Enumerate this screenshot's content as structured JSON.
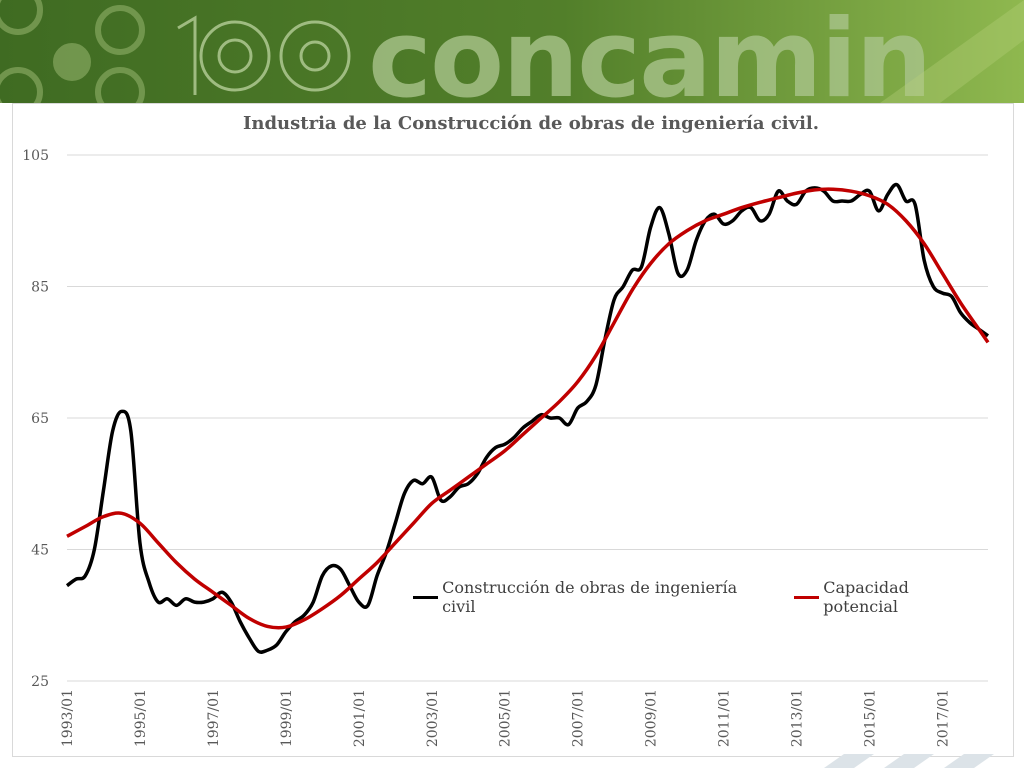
{
  "banner": {
    "logo_text": "concamin",
    "anniversary": "100",
    "colors": {
      "dark": "#3f6b22",
      "mid": "#5c8a2a",
      "light": "#8fb84f"
    }
  },
  "chart_data": {
    "type": "line",
    "title": "Industria de la Construcción de obras de ingeniería civil.",
    "xlabel": "",
    "ylabel": "",
    "ylim": [
      25,
      105
    ],
    "yticks": [
      "105",
      "85",
      "65",
      "45",
      "25"
    ],
    "xticks": [
      "1993/01",
      "1995/01",
      "1997/01",
      "1999/01",
      "2001/01",
      "2003/01",
      "2005/01",
      "2007/01",
      "2009/01",
      "2011/01",
      "2013/01",
      "2015/01",
      "2017/01"
    ],
    "grid": true,
    "legend_position": "lower-center",
    "series": [
      {
        "name": "Construcción de obras de ingeniería civil",
        "color": "#000000",
        "points": [
          [
            1993.0,
            39.5
          ],
          [
            1993.25,
            40.5
          ],
          [
            1993.5,
            41.0
          ],
          [
            1993.75,
            45.0
          ],
          [
            1994.0,
            54.0
          ],
          [
            1994.25,
            63.0
          ],
          [
            1994.5,
            66.0
          ],
          [
            1994.75,
            63.0
          ],
          [
            1995.0,
            46.0
          ],
          [
            1995.25,
            40.0
          ],
          [
            1995.5,
            37.0
          ],
          [
            1995.75,
            37.5
          ],
          [
            1996.0,
            36.5
          ],
          [
            1996.25,
            37.5
          ],
          [
            1996.5,
            37.0
          ],
          [
            1996.75,
            37.0
          ],
          [
            1997.0,
            37.5
          ],
          [
            1997.25,
            38.5
          ],
          [
            1997.5,
            37.0
          ],
          [
            1997.75,
            34.0
          ],
          [
            1998.0,
            31.5
          ],
          [
            1998.25,
            29.5
          ],
          [
            1998.5,
            29.7
          ],
          [
            1998.75,
            30.5
          ],
          [
            1999.0,
            32.5
          ],
          [
            1999.25,
            34.0
          ],
          [
            1999.5,
            35.0
          ],
          [
            1999.75,
            37.0
          ],
          [
            2000.0,
            41.0
          ],
          [
            2000.25,
            42.5
          ],
          [
            2000.5,
            42.0
          ],
          [
            2000.75,
            39.5
          ],
          [
            2001.0,
            37.0
          ],
          [
            2001.25,
            36.5
          ],
          [
            2001.5,
            41.0
          ],
          [
            2001.75,
            44.5
          ],
          [
            2002.0,
            49.0
          ],
          [
            2002.25,
            53.5
          ],
          [
            2002.5,
            55.5
          ],
          [
            2002.75,
            55.0
          ],
          [
            2003.0,
            56.0
          ],
          [
            2003.25,
            52.5
          ],
          [
            2003.5,
            53.0
          ],
          [
            2003.75,
            54.5
          ],
          [
            2004.0,
            55.0
          ],
          [
            2004.25,
            56.5
          ],
          [
            2004.5,
            59.0
          ],
          [
            2004.75,
            60.5
          ],
          [
            2005.0,
            61.0
          ],
          [
            2005.25,
            62.0
          ],
          [
            2005.5,
            63.5
          ],
          [
            2005.75,
            64.5
          ],
          [
            2006.0,
            65.5
          ],
          [
            2006.25,
            65.0
          ],
          [
            2006.5,
            65.0
          ],
          [
            2006.75,
            64.0
          ],
          [
            2007.0,
            66.5
          ],
          [
            2007.25,
            67.5
          ],
          [
            2007.5,
            70.0
          ],
          [
            2007.75,
            77.0
          ],
          [
            2008.0,
            83.0
          ],
          [
            2008.25,
            85.0
          ],
          [
            2008.5,
            87.5
          ],
          [
            2008.75,
            88.0
          ],
          [
            2009.0,
            94.0
          ],
          [
            2009.25,
            97.0
          ],
          [
            2009.5,
            93.0
          ],
          [
            2009.75,
            87.0
          ],
          [
            2010.0,
            87.5
          ],
          [
            2010.25,
            92.0
          ],
          [
            2010.5,
            95.0
          ],
          [
            2010.75,
            96.0
          ],
          [
            2011.0,
            94.5
          ],
          [
            2011.25,
            95.0
          ],
          [
            2011.5,
            96.5
          ],
          [
            2011.75,
            97.0
          ],
          [
            2012.0,
            95.0
          ],
          [
            2012.25,
            96.0
          ],
          [
            2012.5,
            99.5
          ],
          [
            2012.75,
            98.0
          ],
          [
            2013.0,
            97.5
          ],
          [
            2013.25,
            99.5
          ],
          [
            2013.5,
            100.0
          ],
          [
            2013.75,
            99.5
          ],
          [
            2014.0,
            98.0
          ],
          [
            2014.25,
            98.0
          ],
          [
            2014.5,
            98.0
          ],
          [
            2014.75,
            99.0
          ],
          [
            2015.0,
            99.5
          ],
          [
            2015.25,
            96.5
          ],
          [
            2015.5,
            99.0
          ],
          [
            2015.75,
            100.5
          ],
          [
            2016.0,
            98.0
          ],
          [
            2016.25,
            97.5
          ],
          [
            2016.5,
            89.0
          ],
          [
            2016.75,
            85.0
          ],
          [
            2017.0,
            84.0
          ],
          [
            2017.25,
            83.5
          ],
          [
            2017.5,
            81.0
          ],
          [
            2017.75,
            79.5
          ],
          [
            2018.0,
            78.5
          ],
          [
            2018.25,
            77.5
          ]
        ]
      },
      {
        "name": "Capacidad potencial",
        "color": "#c00000",
        "points": [
          [
            1993.0,
            47.0
          ],
          [
            1993.5,
            48.5
          ],
          [
            1994.0,
            50.0
          ],
          [
            1994.5,
            50.5
          ],
          [
            1995.0,
            49.0
          ],
          [
            1995.5,
            46.0
          ],
          [
            1996.0,
            43.0
          ],
          [
            1996.5,
            40.5
          ],
          [
            1997.0,
            38.5
          ],
          [
            1997.5,
            36.5
          ],
          [
            1998.0,
            34.5
          ],
          [
            1998.5,
            33.3
          ],
          [
            1999.0,
            33.2
          ],
          [
            1999.5,
            34.3
          ],
          [
            2000.0,
            36.0
          ],
          [
            2000.5,
            38.0
          ],
          [
            2001.0,
            40.5
          ],
          [
            2001.5,
            43.0
          ],
          [
            2002.0,
            46.0
          ],
          [
            2002.5,
            49.0
          ],
          [
            2003.0,
            52.0
          ],
          [
            2003.5,
            54.0
          ],
          [
            2004.0,
            56.0
          ],
          [
            2004.5,
            58.0
          ],
          [
            2005.0,
            60.0
          ],
          [
            2005.5,
            62.5
          ],
          [
            2006.0,
            65.0
          ],
          [
            2006.5,
            67.5
          ],
          [
            2007.0,
            70.5
          ],
          [
            2007.5,
            74.5
          ],
          [
            2008.0,
            79.5
          ],
          [
            2008.5,
            84.5
          ],
          [
            2009.0,
            88.5
          ],
          [
            2009.5,
            91.5
          ],
          [
            2010.0,
            93.5
          ],
          [
            2010.5,
            95.0
          ],
          [
            2011.0,
            96.0
          ],
          [
            2011.5,
            97.0
          ],
          [
            2012.0,
            97.8
          ],
          [
            2012.5,
            98.5
          ],
          [
            2013.0,
            99.2
          ],
          [
            2013.5,
            99.7
          ],
          [
            2014.0,
            99.8
          ],
          [
            2014.5,
            99.5
          ],
          [
            2015.0,
            98.8
          ],
          [
            2015.5,
            97.5
          ],
          [
            2016.0,
            95.0
          ],
          [
            2016.5,
            91.5
          ],
          [
            2017.0,
            87.0
          ],
          [
            2017.5,
            82.5
          ],
          [
            2018.0,
            78.5
          ],
          [
            2018.25,
            76.5
          ]
        ]
      }
    ]
  }
}
